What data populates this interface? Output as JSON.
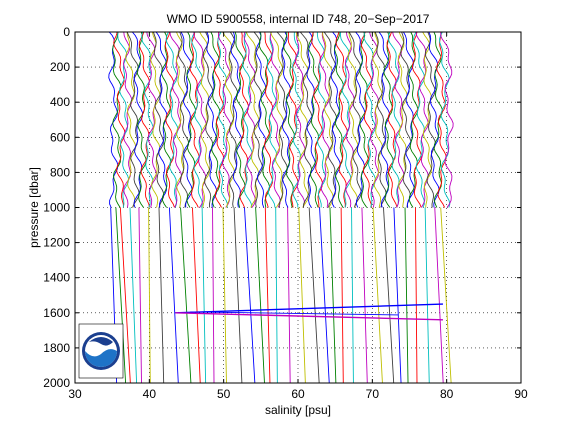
{
  "chart_data": {
    "type": "line",
    "title": "WMO ID 5900558, internal ID 748, 20−Sep−2017",
    "xlabel": "salinity [psu]",
    "ylabel": "pressure [dbar]",
    "xlim": [
      30,
      90
    ],
    "ylim": [
      0,
      2000
    ],
    "y_reversed": true,
    "xticks": [
      "30",
      "40",
      "50",
      "60",
      "70",
      "80",
      "90"
    ],
    "yticks": [
      "0",
      "200",
      "400",
      "600",
      "800",
      "1000",
      "1200",
      "1400",
      "1600",
      "1800",
      "2000"
    ],
    "grid": "dotted",
    "profile_offset_psu_per_cast": 0.5,
    "deep_profile_start_psu": [
      34.8,
      35.5,
      36.1,
      37.4,
      38.6,
      39.9,
      41.3,
      42.7,
      44.2,
      45.8,
      47.1,
      48.5,
      49.9,
      51.4,
      52.8,
      54.3,
      55.6,
      57.0,
      58.6,
      60.1,
      61.5,
      62.9,
      64.3,
      65.8,
      67.2,
      68.6,
      70.1,
      71.5,
      72.9,
      74.4,
      75.8,
      77.1,
      78.4,
      79.2
    ],
    "anomaly": {
      "pressure_dbar": [
        1550,
        1600,
        1640
      ],
      "salinity_psu": [
        43.5,
        79.5
      ]
    },
    "logo": "noaa-logo",
    "colors": [
      "#0000ff",
      "#008000",
      "#ff0000",
      "#00bfbf",
      "#bf00bf",
      "#bfbf00",
      "#404040"
    ]
  }
}
